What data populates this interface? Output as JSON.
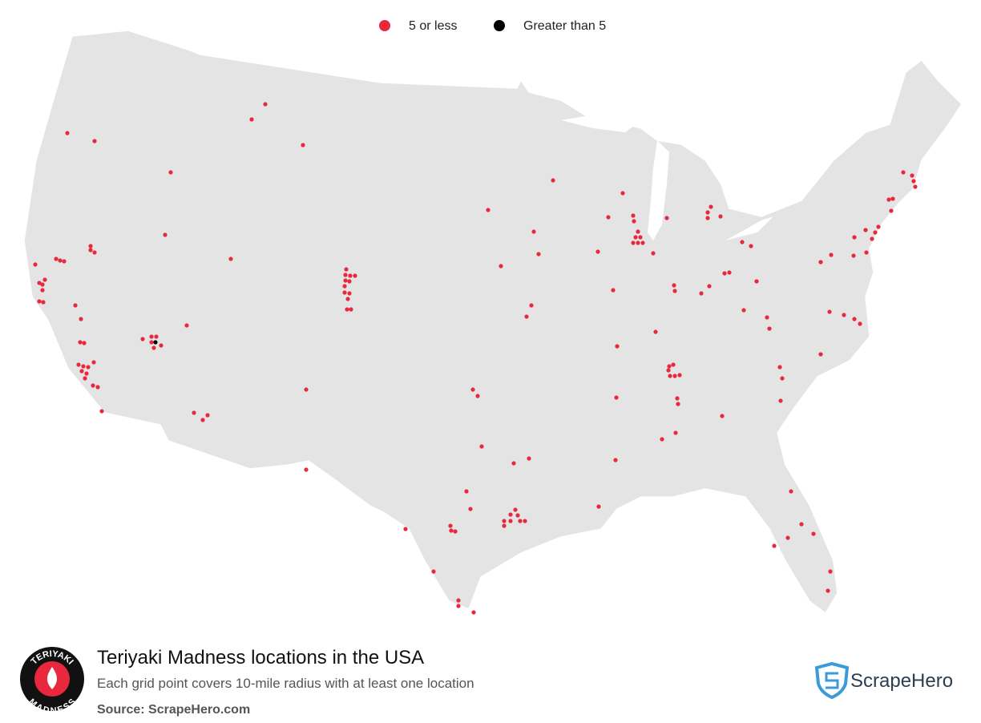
{
  "legend": [
    {
      "label": "5 or less",
      "color": "#e8283c"
    },
    {
      "label": "Greater than 5",
      "color": "#000000"
    }
  ],
  "footer": {
    "title": "Teriyaki Madness locations in the USA",
    "subtitle": "Each grid point covers 10-mile radius with at least one location",
    "source": "Source: ScrapeHero.com",
    "logo_top": "TERIYAKI",
    "logo_bottom": "MADNESS",
    "brand": "ScrapeHero"
  }
}
